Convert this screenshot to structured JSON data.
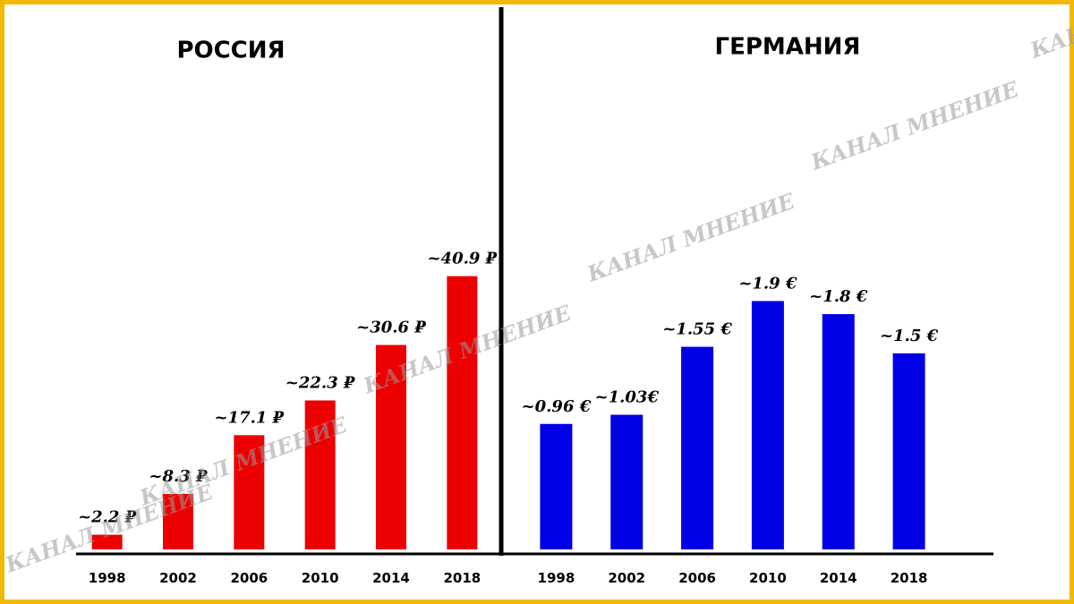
{
  "watermark": "КАНАЛ МНЕНИЕ",
  "chart_data": [
    {
      "type": "bar",
      "title": "РОССИЯ",
      "categories": [
        "1998",
        "2002",
        "2006",
        "2010",
        "2014",
        "2018"
      ],
      "values": [
        2.2,
        8.3,
        17.1,
        22.3,
        30.6,
        40.9
      ],
      "value_labels": [
        "~2.2 ₽",
        "~8.3 ₽",
        "~17.1 ₽",
        "~22.3 ₽",
        "~30.6 ₽",
        "~40.9 ₽"
      ],
      "color": "#ee0000",
      "ylim": [
        0,
        45
      ]
    },
    {
      "type": "bar",
      "title": "ГЕРМАНИЯ",
      "categories": [
        "1998",
        "2002",
        "2006",
        "2010",
        "2014",
        "2018"
      ],
      "values": [
        0.96,
        1.03,
        1.55,
        1.9,
        1.8,
        1.5
      ],
      "value_labels": [
        "~0.96 €",
        "~1.03€",
        "~1.55 €",
        "~1.9 €",
        "~1.8 €",
        "~1.5 €"
      ],
      "color": "#0000e6",
      "ylim": [
        0,
        2.3
      ]
    }
  ]
}
